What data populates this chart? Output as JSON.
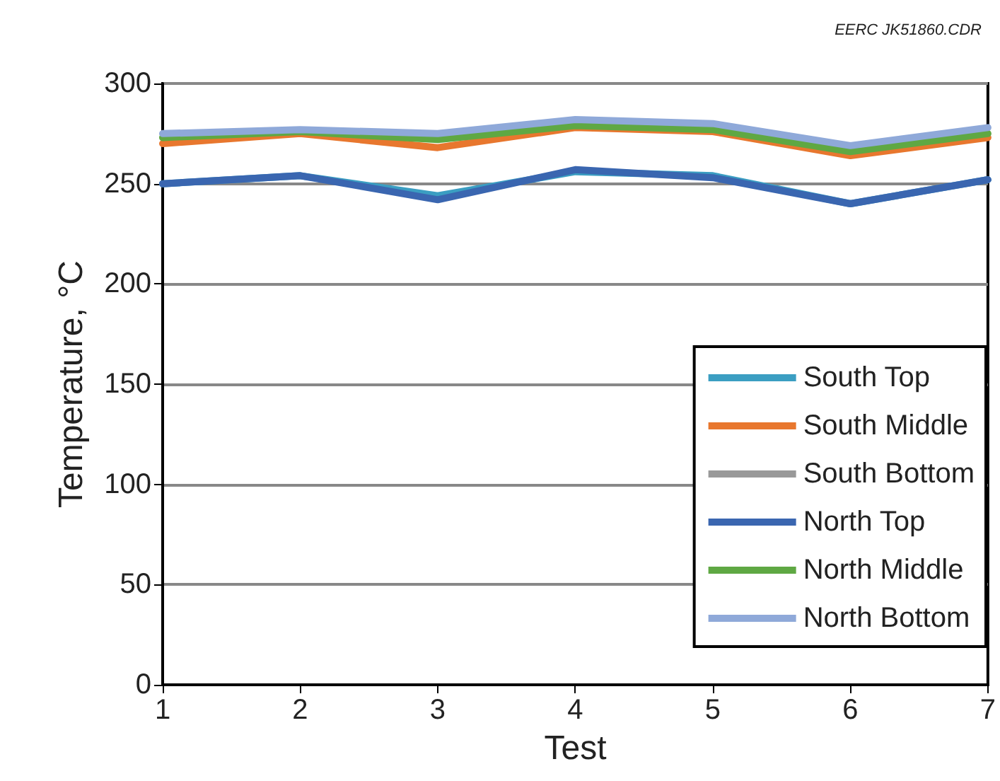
{
  "chart_data": {
    "type": "line",
    "xlabel": "Test",
    "ylabel": "Temperature, °C",
    "annotations": [
      "EERC JK51860.CDR"
    ],
    "x": [
      1,
      2,
      3,
      4,
      5,
      6,
      7
    ],
    "xlim": [
      1,
      7
    ],
    "xticks": [
      1,
      2,
      3,
      4,
      5,
      6,
      7
    ],
    "ylim": [
      0,
      300
    ],
    "yticks": [
      0,
      50,
      100,
      150,
      200,
      250,
      300
    ],
    "grid": "y",
    "legend": "bottom right",
    "marker": "none",
    "line_style": "solid",
    "series": [
      {
        "name": "South Top",
        "color": "#3b9ec2",
        "values": [
          250,
          254,
          244,
          256,
          254,
          240,
          252
        ]
      },
      {
        "name": "South Middle",
        "color": "#e8772e",
        "values": [
          270,
          275,
          268,
          278,
          276,
          264,
          273
        ]
      },
      {
        "name": "South Bottom",
        "color": "#999999",
        "values": [
          null,
          null,
          null,
          null,
          null,
          null,
          null
        ]
      },
      {
        "name": "North Top",
        "color": "#3a66b0",
        "values": [
          250,
          254,
          242,
          257,
          253,
          240,
          252
        ]
      },
      {
        "name": "North Middle",
        "color": "#5fa843",
        "values": [
          273,
          276,
          272,
          279,
          277,
          266,
          275
        ]
      },
      {
        "name": "North Bottom",
        "color": "#8fa9d9",
        "values": [
          275,
          277,
          275,
          282,
          280,
          269,
          278
        ]
      }
    ]
  }
}
